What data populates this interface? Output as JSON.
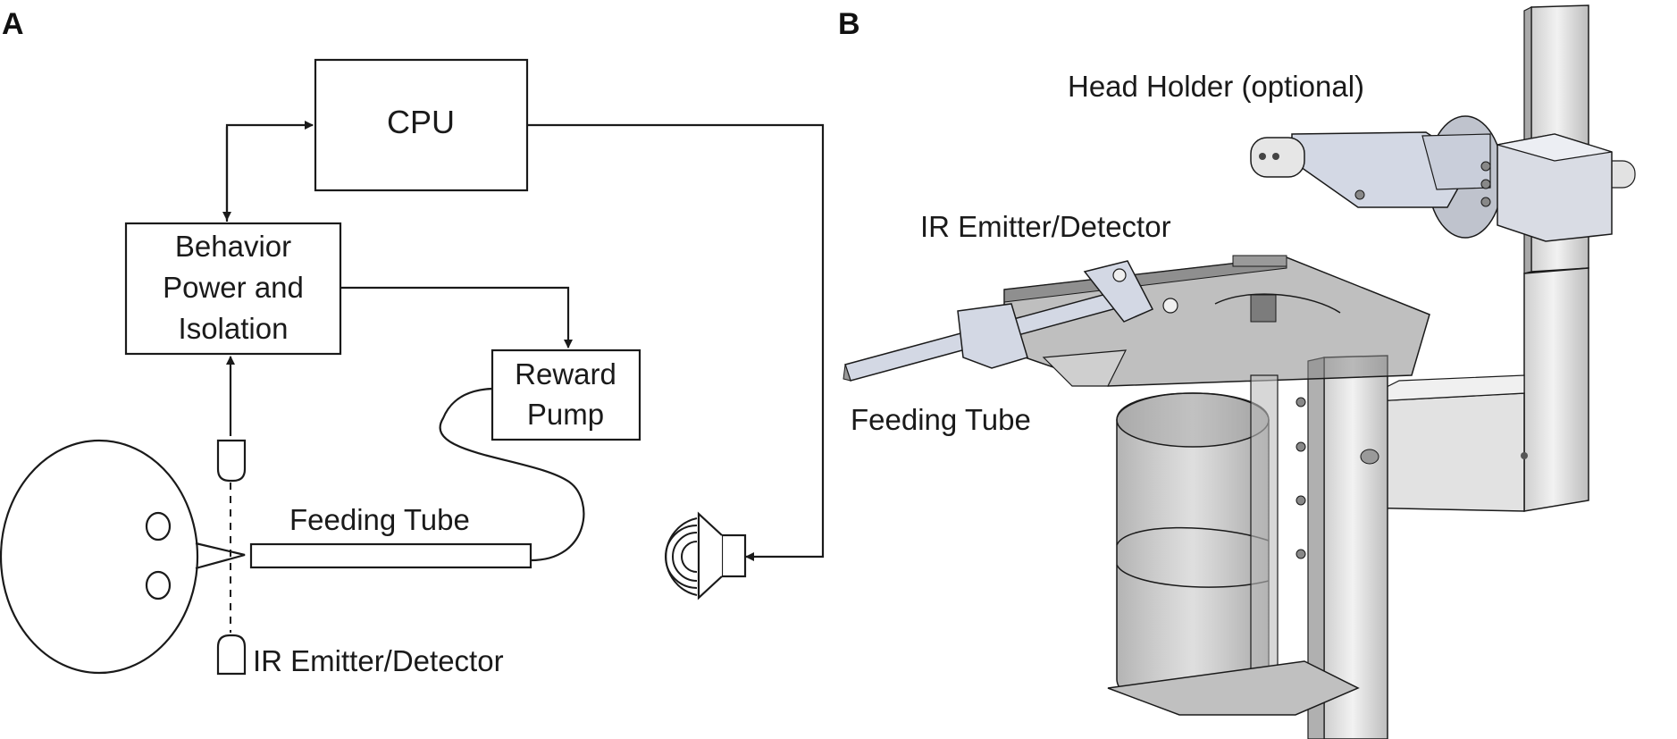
{
  "panel_a": {
    "letter": "A",
    "cpu_label": "CPU",
    "behavior_line1": "Behavior",
    "behavior_line2": "Power and",
    "behavior_line3": "Isolation",
    "reward_line1": "Reward",
    "reward_line2": "Pump",
    "feeding_tube_label": "Feeding Tube",
    "ir_label": "IR Emitter/Detector"
  },
  "panel_b": {
    "letter": "B",
    "head_holder_label": "Head Holder (optional)",
    "ir_label": "IR Emitter/Detector",
    "feeding_tube_label": "Feeding Tube"
  },
  "colors": {
    "stroke": "#1a1a1a",
    "metal_light": "#e6e6e6",
    "metal_mid": "#cfcfcf",
    "metal_dark": "#b5b5b5",
    "bracket_blue": "#d3d8e4",
    "tube_glass": "#8c8c8c",
    "plate_glass": "#7d7d7d"
  }
}
